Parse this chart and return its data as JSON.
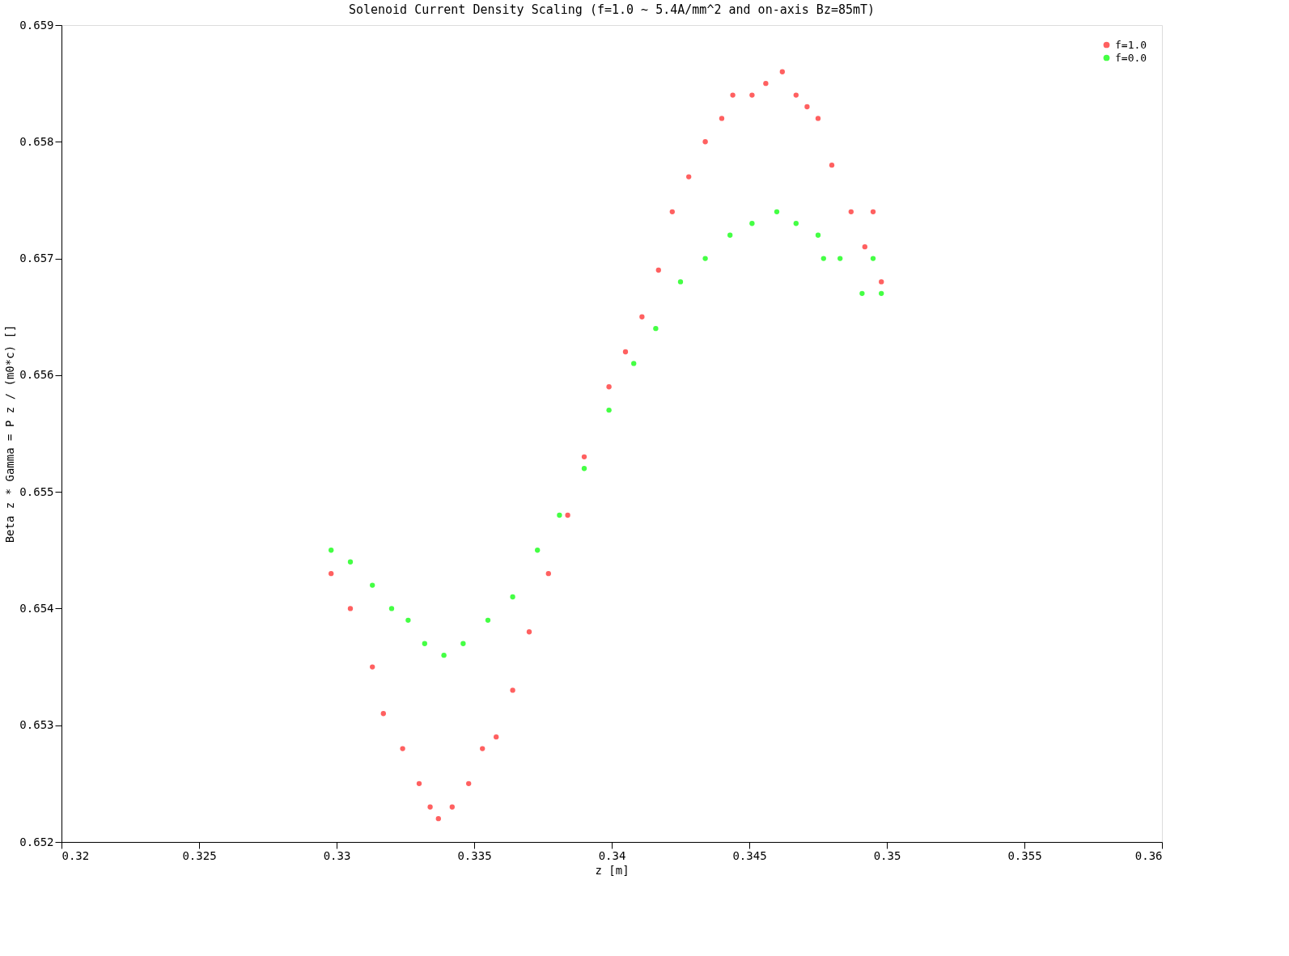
{
  "chart_data": {
    "type": "scatter",
    "title": "Solenoid Current Density Scaling (f=1.0 ~ 5.4A/mm^2 and on-axis Bz=85mT)",
    "xlabel": "z [m]",
    "ylabel": "Beta z * Gamma = P z / (m0*c) []",
    "xlim": [
      0.32,
      0.36
    ],
    "xticks": [
      0.32,
      0.325,
      0.33,
      0.335,
      0.34,
      0.345,
      0.35,
      0.355,
      0.36
    ],
    "ylim": [
      0.652,
      0.659
    ],
    "yticks": [
      0.652,
      0.653,
      0.654,
      0.655,
      0.656,
      0.657,
      0.658,
      0.659
    ],
    "grid": false,
    "legend": "top right",
    "marker": "circle",
    "series": [
      {
        "name": "f=1.0",
        "color": "#ff6060",
        "x": [
          0.3298,
          0.3305,
          0.3313,
          0.3317,
          0.3324,
          0.333,
          0.3334,
          0.3337,
          0.3342,
          0.3348,
          0.3353,
          0.3358,
          0.3364,
          0.337,
          0.3377,
          0.3384,
          0.339,
          0.3399,
          0.3405,
          0.3411,
          0.3417,
          0.3422,
          0.3428,
          0.3434,
          0.344,
          0.3444,
          0.3451,
          0.3456,
          0.3462,
          0.3467,
          0.3471,
          0.3475,
          0.348,
          0.3487,
          0.3492,
          0.3495,
          0.3498
        ],
        "values": [
          0.6543,
          0.654,
          0.6535,
          0.6531,
          0.6528,
          0.6525,
          0.6523,
          0.6522,
          0.6523,
          0.6525,
          0.6528,
          0.6529,
          0.6533,
          0.6538,
          0.6543,
          0.6548,
          0.6553,
          0.6559,
          0.6562,
          0.6565,
          0.6569,
          0.6574,
          0.6577,
          0.658,
          0.6582,
          0.6584,
          0.6584,
          0.6585,
          0.6586,
          0.6584,
          0.6583,
          0.6582,
          0.6578,
          0.6574,
          0.6571,
          0.6574,
          0.6568
        ]
      },
      {
        "name": "f=0.0",
        "color": "#44ff44",
        "x": [
          0.3298,
          0.3305,
          0.3313,
          0.332,
          0.3326,
          0.3332,
          0.3339,
          0.3346,
          0.3355,
          0.3364,
          0.3373,
          0.3381,
          0.339,
          0.3399,
          0.3408,
          0.3416,
          0.3425,
          0.3434,
          0.3443,
          0.3451,
          0.346,
          0.3467,
          0.3475,
          0.3477,
          0.3483,
          0.3491,
          0.3495,
          0.3498
        ],
        "values": [
          0.6545,
          0.6544,
          0.6542,
          0.654,
          0.6539,
          0.6537,
          0.6536,
          0.6537,
          0.6539,
          0.6541,
          0.6545,
          0.6548,
          0.6552,
          0.6557,
          0.6561,
          0.6564,
          0.6568,
          0.657,
          0.6572,
          0.6573,
          0.6574,
          0.6573,
          0.6572,
          0.657,
          0.657,
          0.6567,
          0.657,
          0.6567
        ]
      }
    ]
  }
}
